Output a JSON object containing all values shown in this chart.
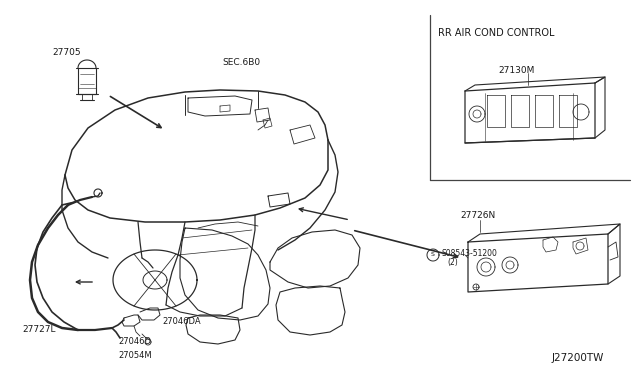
{
  "background_color": "#f5f5f0",
  "line_color": "#2a2a2a",
  "diagram_code": "J27200TW",
  "inset_title": "RR AIR COND CONTROL",
  "label_27705": "27705",
  "label_sec": "SEC.6B0",
  "label_27727l": "27727L",
  "label_27046d": "27046D",
  "label_27054m": "27054M",
  "label_27046da": "27046DA",
  "label_27130m": "27130M",
  "label_27726n": "27726N",
  "label_s": "S08543-51200",
  "label_s2": "(2)"
}
